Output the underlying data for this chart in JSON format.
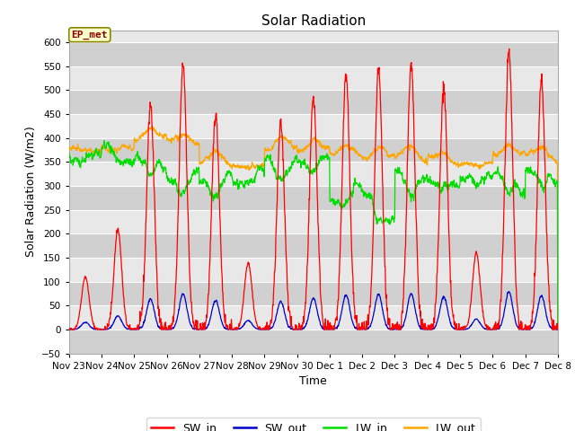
{
  "title": "Solar Radiation",
  "ylabel": "Solar Radiation (W/m2)",
  "xlabel": "Time",
  "ylim": [
    -50,
    625
  ],
  "ep_met_label": "EP_met",
  "legend_labels": [
    "SW_in",
    "SW_out",
    "LW_in",
    "LW_out"
  ],
  "legend_colors": [
    "#ff0000",
    "#0000cd",
    "#00dd00",
    "#ffa500"
  ],
  "fig_bg": "#ffffff",
  "plot_bg": "#e8e8e8",
  "alt_band_color": "#d0d0d0",
  "grid_color": "#ffffff",
  "tick_labels": [
    "Nov 23",
    "Nov 24",
    "Nov 25",
    "Nov 26",
    "Nov 27",
    "Nov 28",
    "Nov 29",
    "Nov 30",
    "Dec 1",
    "Dec 2",
    "Dec 3",
    "Dec 4",
    "Dec 5",
    "Dec 6",
    "Dec 7",
    "Dec 8"
  ],
  "yticks": [
    -50,
    0,
    50,
    100,
    150,
    200,
    250,
    300,
    350,
    400,
    450,
    500,
    550,
    600
  ],
  "sw_peaks": [
    110,
    210,
    470,
    555,
    450,
    140,
    430,
    485,
    530,
    540,
    550,
    505,
    160,
    580,
    520
  ],
  "lw_in_base": [
    365,
    370,
    355,
    320,
    315,
    320,
    350,
    360,
    290,
    260,
    320,
    315,
    320,
    315,
    330
  ],
  "lw_out_base": [
    375,
    378,
    400,
    390,
    350,
    340,
    380,
    375,
    365,
    360,
    360,
    350,
    345,
    365,
    360
  ],
  "title_fontsize": 11,
  "axis_label_fontsize": 9,
  "tick_fontsize": 7.5,
  "legend_fontsize": 9
}
